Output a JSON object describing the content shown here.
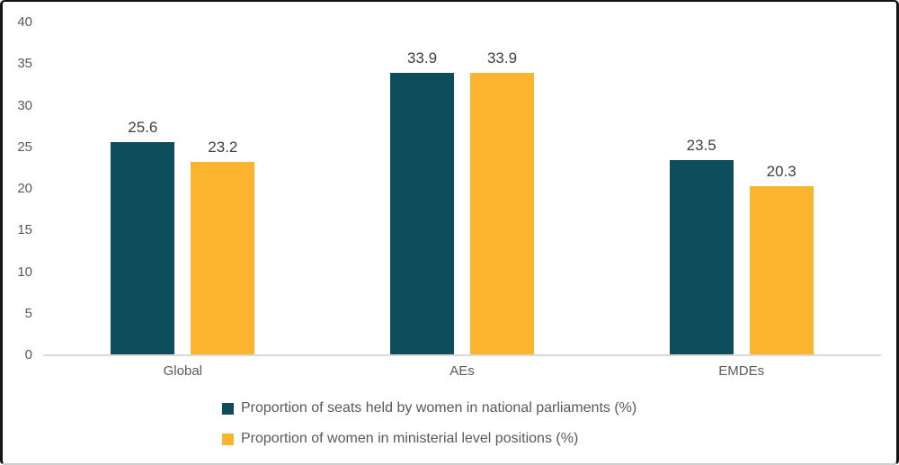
{
  "chart_data": {
    "type": "bar",
    "title": "",
    "xlabel": "",
    "ylabel": "",
    "categories": [
      "Global",
      "AEs",
      "EMDEs"
    ],
    "series": [
      {
        "name": "Proportion of seats held by women in national parliaments (%)",
        "color": "#0e4d5c",
        "values": [
          25.6,
          33.9,
          23.5
        ],
        "data_labels": [
          "25.6",
          "33.9",
          "23.5"
        ]
      },
      {
        "name": "Proportion of women in ministerial level positions (%)",
        "color": "#fcb42f",
        "values": [
          23.2,
          33.9,
          20.3
        ],
        "data_labels": [
          "23.2",
          "33.9",
          "20.3"
        ]
      }
    ],
    "ylim": [
      0,
      40
    ],
    "y_ticks": [
      "0",
      "5",
      "10",
      "15",
      "20",
      "25",
      "30",
      "35",
      "40"
    ],
    "grid": false,
    "legend_position": "bottom"
  },
  "colors": {
    "series_parliaments": "#0e4d5c",
    "series_ministerial": "#fcb42f",
    "axis_line": "#d9d9d9",
    "tick_label": "#595959",
    "data_label": "#404040",
    "frame_border": "#141414",
    "background": "#ffffff"
  }
}
